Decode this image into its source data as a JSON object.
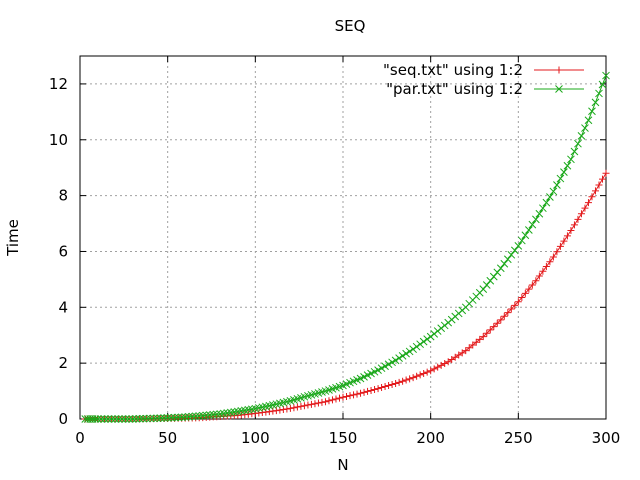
{
  "chart_data": {
    "type": "line",
    "title": "SEQ",
    "xlabel": "N",
    "ylabel": "Time",
    "xlim": [
      0,
      300
    ],
    "ylim": [
      0,
      13
    ],
    "xticks": [
      0,
      50,
      100,
      150,
      200,
      250,
      300
    ],
    "yticks": [
      0,
      2,
      4,
      6,
      8,
      10,
      12
    ],
    "grid": true,
    "legend_position": "top-right",
    "series": [
      {
        "name": "\"seq.txt\" using 1:2",
        "color": "#e31a1c",
        "marker": "plus",
        "x": [
          3,
          10,
          20,
          30,
          40,
          50,
          60,
          70,
          80,
          90,
          100,
          110,
          120,
          130,
          140,
          150,
          160,
          170,
          180,
          190,
          200,
          210,
          220,
          230,
          240,
          250,
          260,
          270,
          280,
          290,
          300
        ],
        "y": [
          0.0,
          0.0,
          0.0,
          0.0,
          0.01,
          0.02,
          0.03,
          0.05,
          0.09,
          0.13,
          0.2,
          0.28,
          0.38,
          0.5,
          0.62,
          0.78,
          0.92,
          1.09,
          1.27,
          1.48,
          1.73,
          2.05,
          2.45,
          2.95,
          3.55,
          4.2,
          4.95,
          5.8,
          6.75,
          7.75,
          8.8
        ]
      },
      {
        "name": "\"par.txt\" using 1:2",
        "color": "#1aa81a",
        "marker": "cross",
        "x": [
          3,
          10,
          20,
          30,
          40,
          50,
          60,
          70,
          80,
          90,
          100,
          110,
          120,
          130,
          140,
          150,
          160,
          170,
          180,
          190,
          200,
          210,
          220,
          230,
          240,
          250,
          260,
          270,
          280,
          290,
          300
        ],
        "y": [
          0.0,
          0.0,
          0.0,
          0.0,
          0.02,
          0.04,
          0.07,
          0.12,
          0.18,
          0.27,
          0.37,
          0.5,
          0.65,
          0.83,
          1.0,
          1.2,
          1.45,
          1.75,
          2.1,
          2.5,
          2.95,
          3.45,
          4.0,
          4.65,
          5.4,
          6.2,
          7.15,
          8.15,
          9.3,
          10.7,
          12.3
        ]
      }
    ]
  }
}
